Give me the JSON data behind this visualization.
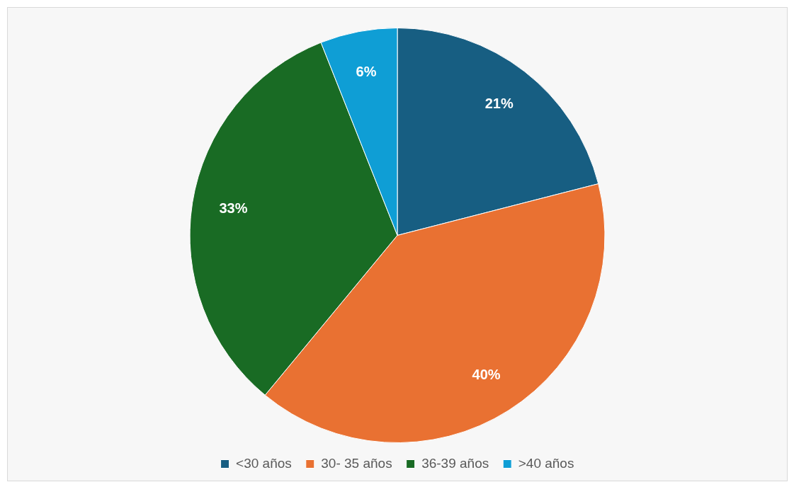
{
  "chart_data": {
    "type": "pie",
    "categories": [
      "<30 años",
      "30- 35 años",
      "36-39 años",
      ">40 años"
    ],
    "values": [
      21,
      40,
      33,
      6
    ],
    "colors": [
      "#175e82",
      "#e97132",
      "#196b24",
      "#0f9ed5"
    ],
    "value_labels": [
      "21%",
      "40%",
      "33%",
      "6%"
    ],
    "legend": "bottom"
  }
}
